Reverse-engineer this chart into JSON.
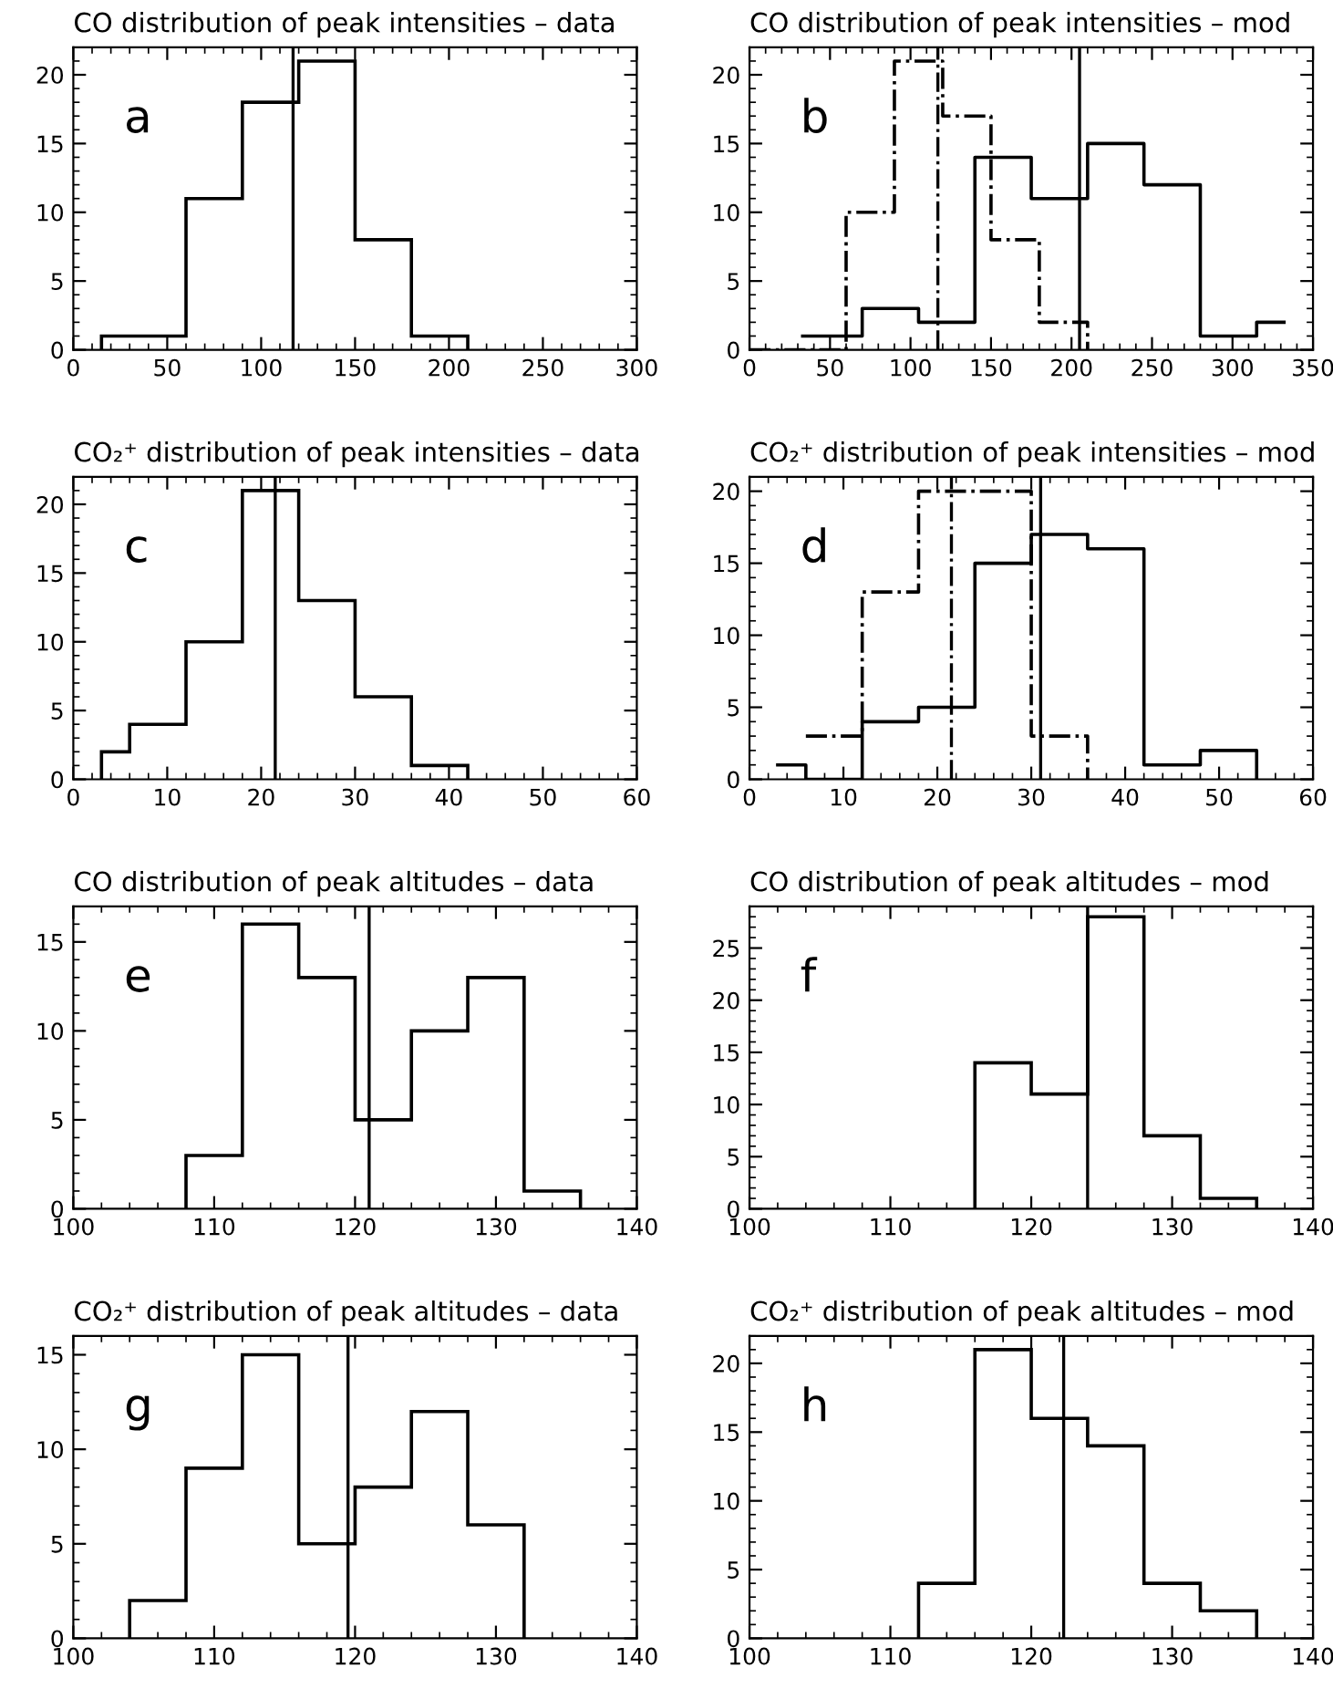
{
  "chart_data": [
    {
      "type": "histogram",
      "title": "CO distribution of peak intensities – data",
      "annotations": [
        "a"
      ],
      "bins": [
        15,
        60,
        90,
        120,
        150,
        180,
        210
      ],
      "values": [
        1,
        11,
        18,
        21,
        8,
        1
      ],
      "color": "#000000",
      "line_style": "solid",
      "ref_lines": [
        {
          "axis": "x",
          "value": 117,
          "color": "#000000",
          "line_style": "solid"
        }
      ],
      "xlim": [
        0,
        300
      ],
      "xticks": [
        0,
        50,
        100,
        150,
        200,
        250,
        300
      ],
      "ylim": [
        0,
        22
      ],
      "yticks": [
        0,
        5,
        10,
        15,
        20
      ]
    },
    {
      "type": "step",
      "title": "CO distribution of peak intensities – mod",
      "annotations": [
        "b"
      ],
      "series": [
        {
          "x": [
            33,
            70,
            105,
            140,
            175,
            210,
            245,
            280,
            315,
            332
          ],
          "values": [
            1,
            3,
            2,
            14,
            11,
            15,
            12,
            1,
            2,
            2
          ],
          "color": "#000000",
          "line_style": "solid"
        },
        {
          "x": [
            0,
            60,
            90,
            120,
            150,
            180,
            210
          ],
          "values": [
            0,
            10,
            21,
            17,
            8,
            2,
            0
          ],
          "color": "#000000",
          "line_style": "dashdot"
        }
      ],
      "ref_lines": [
        {
          "axis": "x",
          "value": 205,
          "color": "#000000",
          "line_style": "solid"
        },
        {
          "axis": "x",
          "value": 117,
          "color": "#000000",
          "line_style": "dashdot"
        }
      ],
      "xlim": [
        0,
        350
      ],
      "xticks": [
        0,
        50,
        100,
        150,
        200,
        250,
        300,
        350
      ],
      "ylim": [
        0,
        22
      ],
      "yticks": [
        0,
        5,
        10,
        15,
        20
      ]
    },
    {
      "type": "histogram",
      "title": "CO₂⁺ distribution of peak intensities – data",
      "annotations": [
        "c"
      ],
      "bins": [
        3,
        6,
        12,
        18,
        24,
        30,
        36,
        42
      ],
      "values": [
        2,
        4,
        10,
        21,
        13,
        6,
        1
      ],
      "color": "#000000",
      "line_style": "solid",
      "ref_lines": [
        {
          "axis": "x",
          "value": 21.5,
          "color": "#000000",
          "line_style": "solid"
        }
      ],
      "xlim": [
        0,
        60
      ],
      "xticks": [
        0,
        10,
        20,
        30,
        40,
        50,
        60
      ],
      "ylim": [
        0,
        22
      ],
      "yticks": [
        0,
        5,
        10,
        15,
        20
      ]
    },
    {
      "type": "step",
      "title": "CO₂⁺ distribution of peak intensities – mod",
      "annotations": [
        "d"
      ],
      "series": [
        {
          "x": [
            3,
            6,
            12,
            18,
            24,
            30,
            36,
            42,
            48,
            54
          ],
          "values": [
            1,
            0,
            4,
            5,
            15,
            17,
            16,
            1,
            2,
            0
          ],
          "color": "#000000",
          "line_style": "solid"
        },
        {
          "x": [
            6,
            12,
            18,
            24,
            30,
            36
          ],
          "values": [
            3,
            13,
            20,
            20,
            3,
            0
          ],
          "color": "#000000",
          "line_style": "dashdot"
        }
      ],
      "ref_lines": [
        {
          "axis": "x",
          "value": 31,
          "color": "#000000",
          "line_style": "solid"
        },
        {
          "axis": "x",
          "value": 21.5,
          "color": "#000000",
          "line_style": "dashdot"
        }
      ],
      "xlim": [
        0,
        60
      ],
      "xticks": [
        0,
        10,
        20,
        30,
        40,
        50,
        60
      ],
      "ylim": [
        0,
        21
      ],
      "yticks": [
        0,
        5,
        10,
        15,
        20
      ]
    },
    {
      "type": "histogram",
      "title": "CO distribution of peak altitudes – data",
      "annotations": [
        "e"
      ],
      "bins": [
        108,
        112,
        116,
        120,
        124,
        128,
        132,
        136
      ],
      "values": [
        3,
        16,
        13,
        5,
        10,
        13,
        1
      ],
      "color": "#000000",
      "line_style": "solid",
      "ref_lines": [
        {
          "axis": "x",
          "value": 121,
          "color": "#000000",
          "line_style": "solid"
        }
      ],
      "xlim": [
        100,
        140
      ],
      "xticks": [
        100,
        110,
        120,
        130,
        140
      ],
      "ylim": [
        0,
        17
      ],
      "yticks": [
        0,
        5,
        10,
        15
      ]
    },
    {
      "type": "histogram",
      "title": "CO distribution of peak altitudes – mod",
      "annotations": [
        "f"
      ],
      "bins": [
        116,
        120,
        124,
        128,
        132,
        136
      ],
      "values": [
        14,
        11,
        28,
        7,
        1
      ],
      "color": "#000000",
      "line_style": "solid",
      "ref_lines": [
        {
          "axis": "x",
          "value": 124,
          "color": "#000000",
          "line_style": "solid"
        }
      ],
      "xlim": [
        100,
        140
      ],
      "xticks": [
        100,
        110,
        120,
        130,
        140
      ],
      "ylim": [
        0,
        29
      ],
      "yticks": [
        0,
        5,
        10,
        15,
        20,
        25
      ]
    },
    {
      "type": "histogram",
      "title": "CO₂⁺ distribution of peak altitudes – data",
      "annotations": [
        "g"
      ],
      "bins": [
        104,
        108,
        112,
        116,
        120,
        124,
        128,
        132
      ],
      "values": [
        2,
        9,
        15,
        5,
        8,
        12,
        6
      ],
      "color": "#000000",
      "line_style": "solid",
      "ref_lines": [
        {
          "axis": "x",
          "value": 119.5,
          "color": "#000000",
          "line_style": "solid"
        }
      ],
      "xlim": [
        100,
        140
      ],
      "xticks": [
        100,
        110,
        120,
        130,
        140
      ],
      "ylim": [
        0,
        16
      ],
      "yticks": [
        0,
        5,
        10,
        15
      ]
    },
    {
      "type": "histogram",
      "title": "CO₂⁺ distribution of peak altitudes – mod",
      "annotations": [
        "h"
      ],
      "bins": [
        112,
        116,
        120,
        124,
        128,
        132,
        136
      ],
      "values": [
        4,
        21,
        16,
        14,
        4,
        2
      ],
      "color": "#000000",
      "line_style": "solid",
      "ref_lines": [
        {
          "axis": "x",
          "value": 122.3,
          "color": "#000000",
          "line_style": "solid"
        }
      ],
      "xlim": [
        100,
        140
      ],
      "xticks": [
        100,
        110,
        120,
        130,
        140
      ],
      "ylim": [
        0,
        22
      ],
      "yticks": [
        0,
        5,
        10,
        15,
        20
      ]
    }
  ]
}
